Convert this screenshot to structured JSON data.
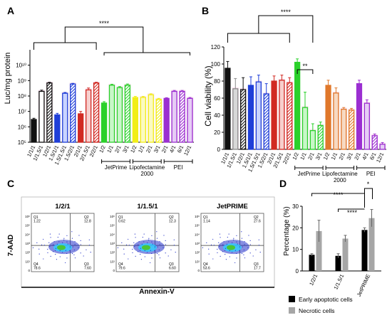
{
  "panels": {
    "a": "A",
    "b": "B",
    "c": "C",
    "d": "D"
  },
  "colors": {
    "black": "#111111",
    "gray": "#8c8c8c",
    "blue": "#1f3fd8",
    "red": "#d12a22",
    "green": "#2bd12b",
    "yellow": "#f2ee17",
    "orange": "#e0782b",
    "purple": "#9b2fd1",
    "pink": "#f6c6de",
    "cyan": "#8fe6f7",
    "flow_blue": "#2230c8",
    "flow_cyan": "#30d0ff",
    "flow_green": "#4cc62b"
  },
  "chart_data": [
    {
      "panel": "A",
      "type": "bar",
      "ylabel": "Luc/mg protein",
      "yscale": "log",
      "ylim": [
        100000,
        100000000000
      ],
      "yticks": [
        "10⁵",
        "10⁶",
        "10⁷",
        "10⁸",
        "10⁹",
        "10¹⁰"
      ],
      "categories": [
        "1/1/1",
        "1/1.5/1",
        "1/2/1",
        "1.5/1/1",
        "1.5/1.5/1",
        "1.5/2/1",
        "2/1/1",
        "2/1.5/1",
        "2/2/1",
        "1/2",
        "1/1",
        "2/1",
        "3/1",
        "1/2",
        "1/1",
        "2/1",
        "3/1",
        "2/1",
        "4/1",
        "6/1",
        "12/1"
      ],
      "values": [
        3000000,
        200000000,
        700000000,
        6000000,
        150000000,
        600000000,
        7000000,
        250000000,
        700000000,
        35000000,
        500000000,
        350000000,
        500000000,
        80000000,
        80000000,
        120000000,
        60000000,
        70000000,
        200000000,
        200000000,
        70000000
      ],
      "errors": [
        600000,
        40000000,
        80000000,
        1500000,
        20000000,
        60000000,
        3000000,
        80000000,
        80000000,
        8000000,
        80000000,
        60000000,
        100000000,
        15000000,
        15000000,
        20000000,
        10000000,
        8000000,
        30000000,
        30000000,
        10000000
      ],
      "group_labels": [
        "JetPrime",
        "Lipofectamine\n2000",
        "PEI"
      ],
      "significance": "****"
    },
    {
      "panel": "B",
      "type": "bar",
      "ylabel": "Cell viability (%)",
      "ylim": [
        0,
        120
      ],
      "yticks": [
        "0",
        "20",
        "40",
        "60",
        "80",
        "100",
        "120"
      ],
      "categories": [
        "1/1/1",
        "1/1.5/1",
        "1/2/1",
        "1.5/1/1",
        "1.5/1.5/1",
        "1.5/2/1",
        "2/1/1",
        "2/1.5/1",
        "2/2/1",
        "1/2",
        "1/1",
        "2/1",
        "3/1",
        "1/2",
        "1/1",
        "2/1",
        "3/1",
        "2/1",
        "4/1",
        "6/1",
        "12/1"
      ],
      "values": [
        95,
        71,
        70,
        75,
        79,
        65,
        80,
        81,
        78,
        102,
        49,
        22,
        28,
        75,
        66,
        47,
        46,
        77,
        54,
        16,
        6
      ],
      "errors": [
        8,
        12,
        14,
        10,
        8,
        12,
        6,
        6,
        6,
        4,
        18,
        8,
        4,
        6,
        6,
        2,
        2,
        4,
        4,
        2,
        2
      ],
      "group_labels": [
        "JetPrime",
        "Lipofectamine\n2000",
        "PEI"
      ],
      "significance": [
        "****",
        "**"
      ]
    },
    {
      "panel": "D",
      "type": "bar",
      "ylabel": "Percentage (%)",
      "ylim": [
        0,
        30
      ],
      "yticks": [
        "0",
        "10",
        "20",
        "30"
      ],
      "categories": [
        "1/2/1",
        "1/1.5/1",
        "JetPRIME"
      ],
      "series": [
        {
          "name": "Early apoptotic cells",
          "values": [
            7.5,
            7,
            19
          ],
          "errors": [
            0.5,
            1,
            1
          ]
        },
        {
          "name": "Necrotic cells",
          "values": [
            18.5,
            15,
            24.5
          ],
          "errors": [
            5,
            1.5,
            4
          ]
        }
      ],
      "significance": [
        "****",
        "****",
        "*"
      ]
    }
  ],
  "flow": {
    "y_axis": "7-AAD",
    "x_axis": "Annexin-V",
    "tick_labels": [
      "10⁶",
      "10⁵",
      "10⁴",
      "10³",
      "10²",
      "10¹",
      "0"
    ],
    "plots": [
      {
        "title": "1/2/1",
        "q1": "Q1\n1.22",
        "q2": "Q2\n12.8",
        "q3": "Q3\n7.60",
        "q4": "Q4\n78.6"
      },
      {
        "title": "1/1.5/1",
        "q1": "Q1\n0.62",
        "q2": "Q2\n12.3",
        "q3": "Q3\n6.60",
        "q4": "Q4\n79.6"
      },
      {
        "title": "JetPRIME",
        "q1": "Q1\n1.14",
        "q2": "Q2\n27.6",
        "q3": "Q3\n17.7",
        "q4": "Q4\n53.6"
      }
    ]
  }
}
